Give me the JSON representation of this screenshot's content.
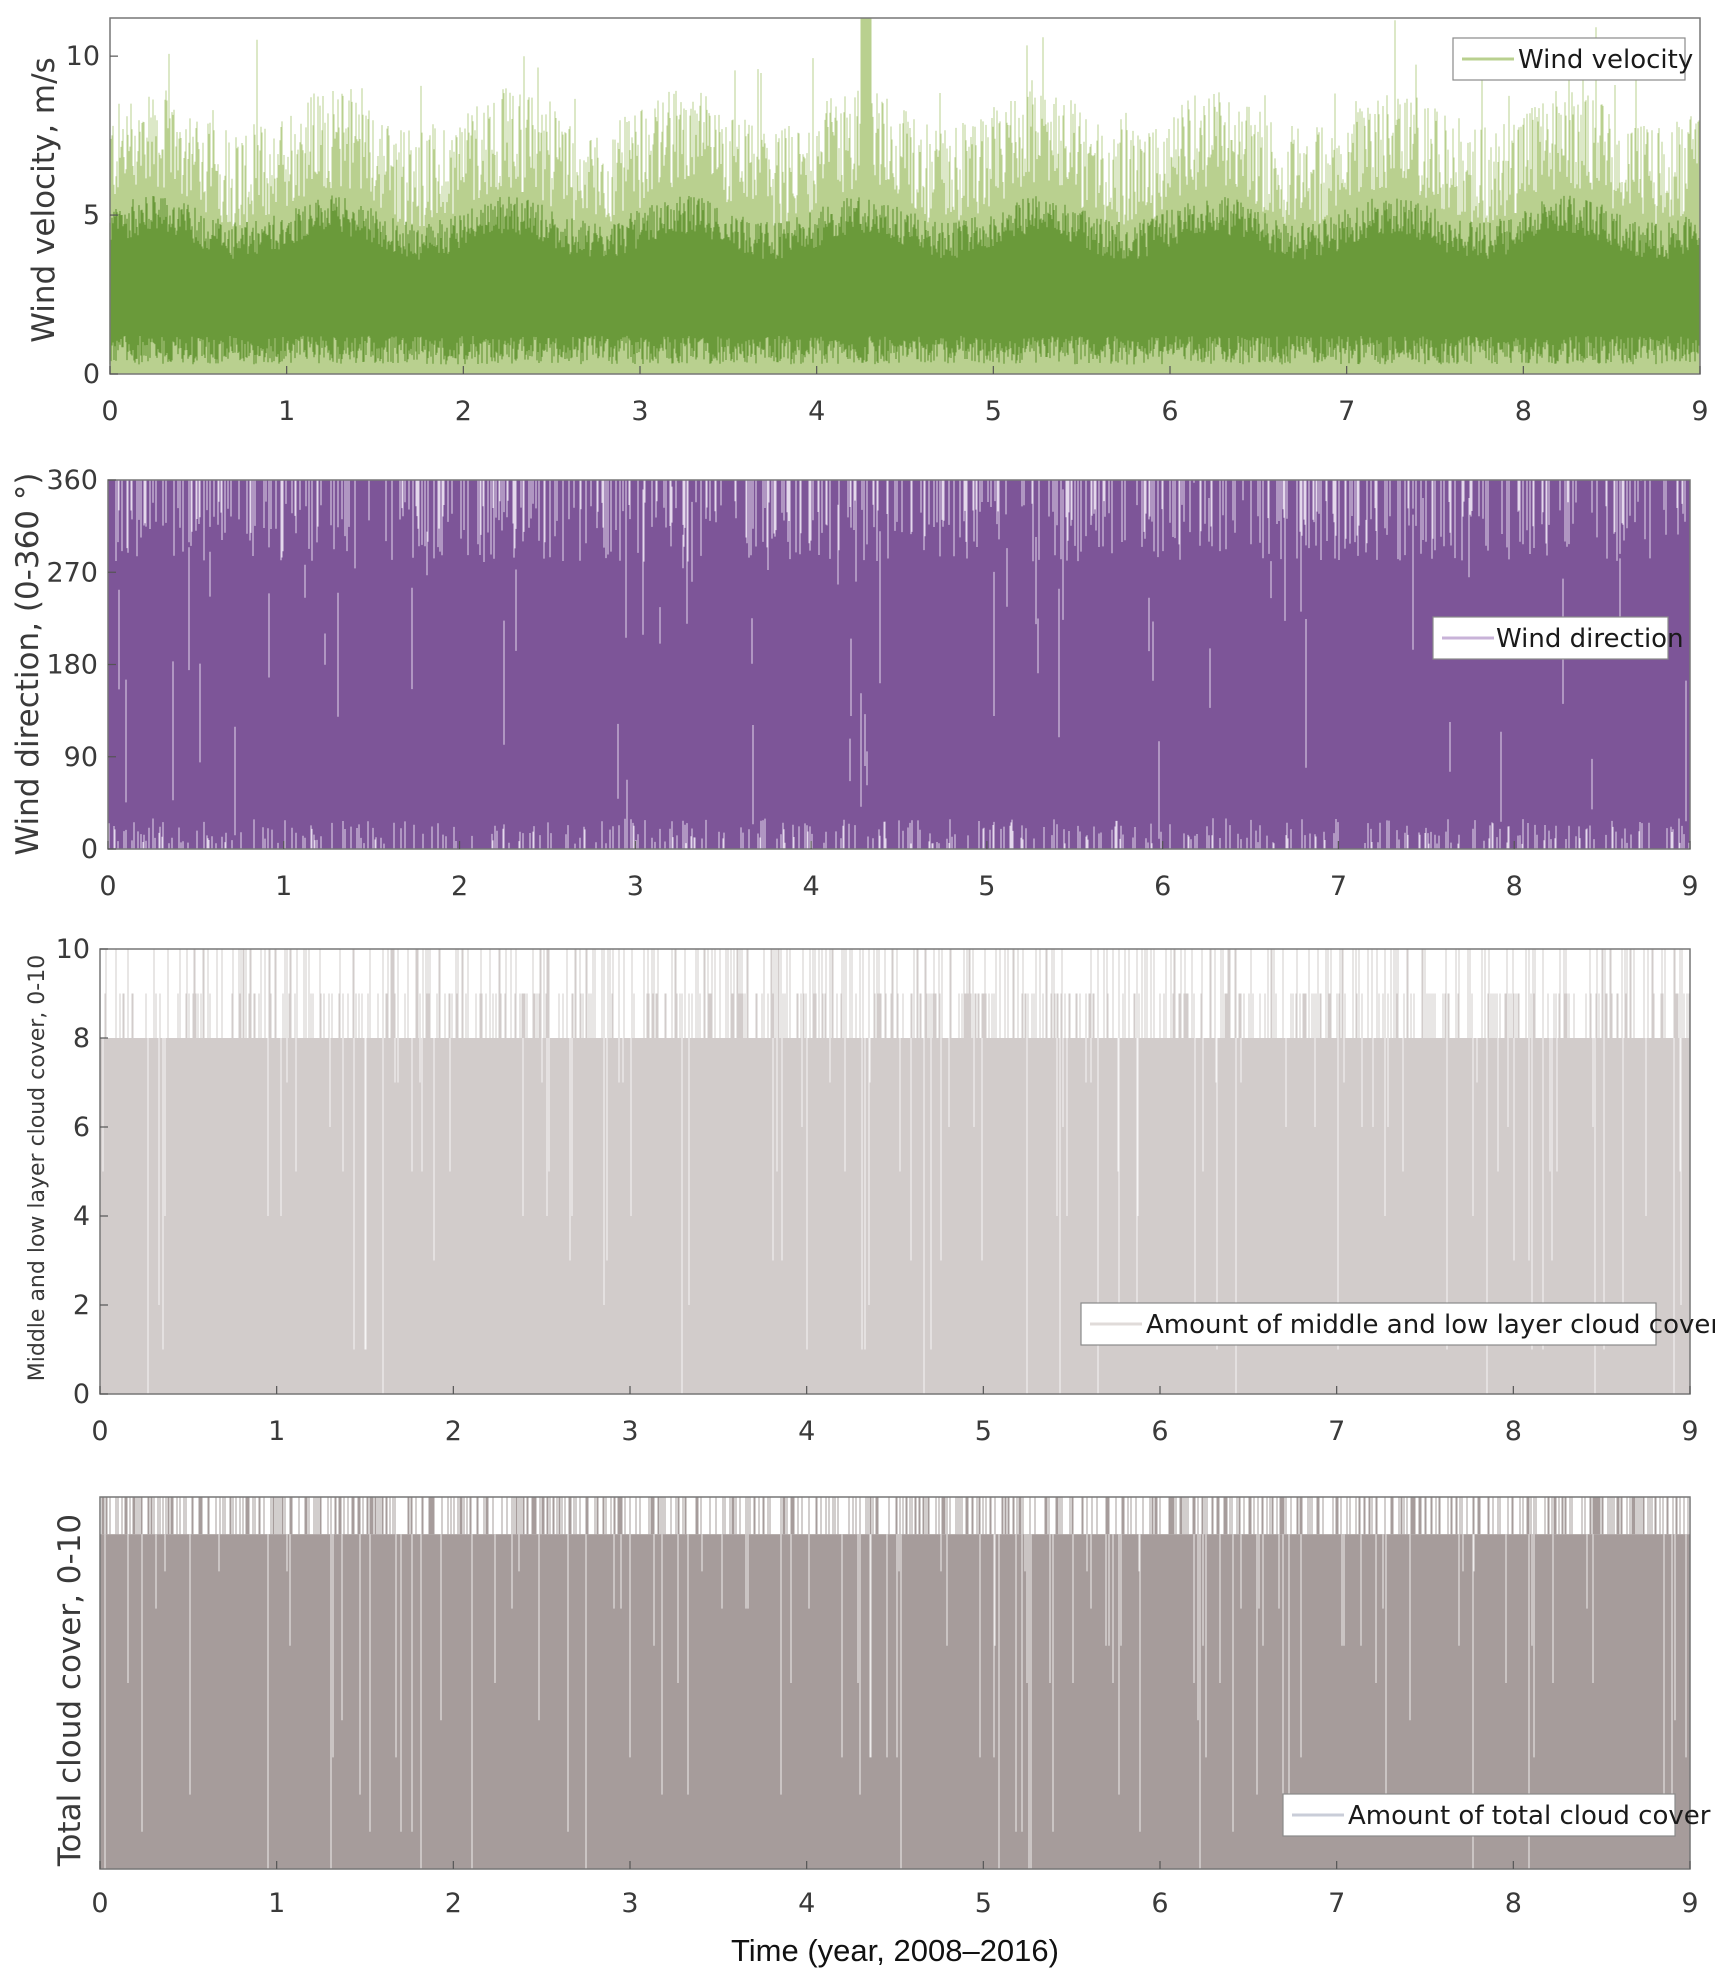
{
  "figure_xlabel": "Time (year, 2008–2016)",
  "chart_data": [
    {
      "type": "line",
      "title": "",
      "ylabel": "Wind velocity, m/s",
      "xlabel": "",
      "xlim": [
        0,
        9
      ],
      "ylim": [
        0,
        11.2
      ],
      "x_ticks": [
        "0",
        "1",
        "2",
        "3",
        "4",
        "5",
        "6",
        "7",
        "8",
        "9"
      ],
      "y_ticks": [
        {
          "value": 0,
          "label": "0"
        },
        {
          "value": 5,
          "label": "5"
        },
        {
          "value": 10,
          "label": "10"
        }
      ],
      "legend": {
        "label": "Wind velocity",
        "position": "top-right"
      },
      "series": [
        {
          "name": "Wind velocity",
          "color": "#6a9a3a",
          "light_color": "#b9d08f",
          "mean": 2.8,
          "band_low": 1.2,
          "band_high": 4.6,
          "peak_max": 11.2
        }
      ],
      "notes": "Hourly wind velocity; mostly 0-6 m/s with peaks near 10-11 m/s around year 4.3"
    },
    {
      "type": "line",
      "title": "",
      "ylabel": "Wind direction, (0-360 °)",
      "xlabel": "",
      "xlim": [
        0,
        9
      ],
      "ylim": [
        0,
        360
      ],
      "x_ticks": [
        "0",
        "1",
        "2",
        "3",
        "4",
        "5",
        "6",
        "7",
        "8",
        "9"
      ],
      "y_ticks": [
        {
          "value": 0,
          "label": "0"
        },
        {
          "value": 90,
          "label": "90"
        },
        {
          "value": 180,
          "label": "180"
        },
        {
          "value": 270,
          "label": "270"
        },
        {
          "value": 360,
          "label": "360"
        }
      ],
      "legend": {
        "label": "Wind direction",
        "position": "right"
      },
      "series": [
        {
          "name": "Wind direction",
          "color": "#7d5598",
          "light_color": "#e4d8ec",
          "range": [
            0,
            360
          ]
        }
      ],
      "notes": "Direction spans the full 0-360 range densely"
    },
    {
      "type": "line",
      "title": "",
      "ylabel": "Middle and low layer cloud cover, 0-10",
      "xlabel": "",
      "xlim": [
        0,
        9
      ],
      "ylim": [
        0,
        10
      ],
      "x_ticks": [
        "0",
        "1",
        "2",
        "3",
        "4",
        "5",
        "6",
        "7",
        "8",
        "9"
      ],
      "y_ticks": [
        {
          "value": 0,
          "label": "0"
        },
        {
          "value": 2,
          "label": "2"
        },
        {
          "value": 4,
          "label": "4"
        },
        {
          "value": 6,
          "label": "6"
        },
        {
          "value": 8,
          "label": "8"
        },
        {
          "value": 10,
          "label": "10"
        }
      ],
      "legend": {
        "label": "Amount of middle and low layer cloud cover",
        "position": "bottom-right"
      },
      "series": [
        {
          "name": "Amount of middle and low layer cloud cover",
          "color": "#d2cccb",
          "light_color": "#ece9e8",
          "levels": [
            0,
            1,
            2,
            3,
            4,
            5,
            6,
            7,
            8,
            9,
            10
          ]
        }
      ],
      "notes": "Integer cloud cover 0-10, frequently at 8-10"
    },
    {
      "type": "line",
      "title": "",
      "ylabel": "Total cloud cover, 0-10",
      "xlabel": "Time (year, 2008–2016)",
      "xlim": [
        0,
        9
      ],
      "ylim": [
        0,
        10
      ],
      "x_ticks": [
        "0",
        "1",
        "2",
        "3",
        "4",
        "5",
        "6",
        "7",
        "8",
        "9"
      ],
      "y_ticks": [],
      "legend": {
        "label": "Amount of total cloud cover",
        "position": "bottom-right"
      },
      "series": [
        {
          "name": "Amount of total cloud cover",
          "color": "#a69c9b",
          "light_color": "#cfc8c7",
          "levels": [
            0,
            1,
            2,
            3,
            4,
            5,
            6,
            7,
            8,
            9,
            10
          ]
        }
      ],
      "notes": "Integer total cloud cover, frequently at 9-10"
    }
  ]
}
